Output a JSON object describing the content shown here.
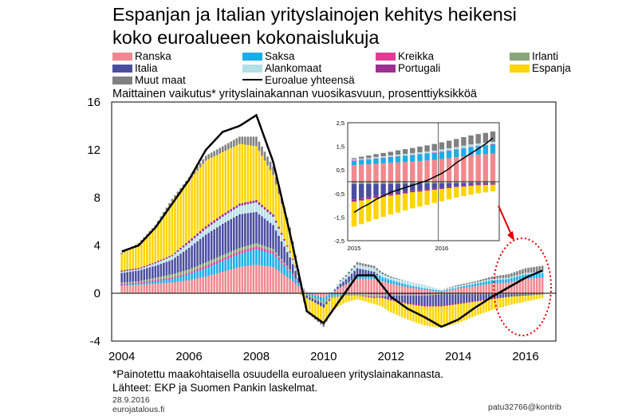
{
  "title_line1": "Espanjan ja Italian yrityslainojen kehitys heikensi",
  "title_line2": "koko euroalueen kokonaislukuja",
  "subtitle": "Maittainen vaikutus* yrityslainakannan vuosikasvuun, prosenttiyksikköä",
  "footnote": "*Painotettu maakohtaisella osuudella euroalueen yrityslainakannasta.",
  "sources": "Lähteet: EKP ja Suomen Pankin laskelmat.",
  "date": "28.9.2016",
  "site": "eurojatalous.fi",
  "signature": "patu32766@kontrib",
  "legend": [
    {
      "label": "Ranska",
      "color": "#f0898f"
    },
    {
      "label": "Saksa",
      "color": "#1aaee8"
    },
    {
      "label": "Kreikka",
      "color": "#e33b95"
    },
    {
      "label": "Irlanti",
      "color": "#8aa57a"
    },
    {
      "label": "Italia",
      "color": "#4b4ea0"
    },
    {
      "label": "Alankomaat",
      "color": "#b4dfe6"
    },
    {
      "label": "Portugali",
      "color": "#9c2f91"
    },
    {
      "label": "Espanja",
      "color": "#ffd400"
    },
    {
      "label": "Muut maat",
      "color": "#808080"
    },
    {
      "label": "Euroalue yhteensä",
      "color": "#000000"
    }
  ],
  "chart_data": {
    "type": "area",
    "stacked": true,
    "title": "Maittainen vaikutus* yrityslainakannan vuosikasvuun, prosenttiyksikköä",
    "x_tick_labels": [
      "2004",
      "2006",
      "2008",
      "2010",
      "2012",
      "2014",
      "2016"
    ],
    "y_tick_labels": [
      "16",
      "12",
      "8",
      "4",
      "0",
      "-4"
    ],
    "ylim": [
      -4,
      16
    ],
    "xlim": [
      2003.7,
      2016.9
    ],
    "years": [
      2004.0,
      2004.5,
      2005.0,
      2005.5,
      2006.0,
      2006.5,
      2007.0,
      2007.5,
      2008.0,
      2008.5,
      2009.0,
      2009.5,
      2010.0,
      2010.5,
      2011.0,
      2011.5,
      2012.0,
      2012.5,
      2013.0,
      2013.5,
      2014.0,
      2014.5,
      2015.0,
      2015.5,
      2016.0,
      2016.5
    ],
    "series": [
      {
        "name": "Ranska",
        "color": "#f0898f",
        "values": [
          0.6,
          0.7,
          0.8,
          0.9,
          1.1,
          1.4,
          1.8,
          2.2,
          2.4,
          2.2,
          1.2,
          0.0,
          -0.4,
          0.5,
          1.2,
          1.2,
          0.8,
          0.5,
          0.3,
          0.1,
          0.4,
          0.6,
          0.8,
          0.9,
          1.2,
          1.3
        ]
      },
      {
        "name": "Saksa",
        "color": "#1aaee8",
        "values": [
          0.1,
          0.1,
          0.2,
          0.3,
          0.5,
          0.7,
          0.9,
          1.1,
          1.3,
          1.1,
          0.6,
          -0.1,
          -0.3,
          -0.1,
          0.3,
          0.4,
          0.3,
          0.2,
          0.1,
          0.1,
          0.1,
          0.2,
          0.3,
          0.3,
          0.4,
          0.4
        ]
      },
      {
        "name": "Kreikka",
        "color": "#e33b95",
        "values": [
          0.1,
          0.1,
          0.1,
          0.1,
          0.1,
          0.2,
          0.2,
          0.2,
          0.2,
          0.2,
          0.1,
          0.0,
          0.0,
          0.0,
          0.0,
          -0.1,
          -0.1,
          -0.1,
          -0.1,
          0.0,
          0.0,
          0.0,
          0.0,
          0.0,
          0.0,
          0.0
        ]
      },
      {
        "name": "Irlanti",
        "color": "#8aa57a",
        "values": [
          0.1,
          0.1,
          0.2,
          0.3,
          0.3,
          0.3,
          0.3,
          0.3,
          0.3,
          0.2,
          0.1,
          -0.1,
          -0.2,
          -0.2,
          -0.2,
          -0.2,
          -0.1,
          -0.1,
          -0.1,
          -0.1,
          -0.1,
          -0.1,
          -0.1,
          -0.1,
          -0.1,
          -0.1
        ]
      },
      {
        "name": "Italia",
        "color": "#4b4ea0",
        "values": [
          0.8,
          0.9,
          1.0,
          1.2,
          1.8,
          2.3,
          2.6,
          2.8,
          2.6,
          2.0,
          1.0,
          -0.2,
          -0.3,
          0.3,
          0.6,
          0.2,
          -0.3,
          -0.6,
          -0.8,
          -0.9,
          -0.7,
          -0.5,
          -0.3,
          -0.2,
          -0.1,
          0.0
        ]
      },
      {
        "name": "Alankomaat",
        "color": "#b4dfe6",
        "values": [
          0.1,
          0.1,
          0.2,
          0.3,
          0.4,
          0.5,
          0.6,
          0.7,
          0.8,
          0.7,
          0.4,
          0.1,
          0.0,
          0.2,
          0.3,
          0.3,
          0.2,
          0.3,
          0.3,
          0.1,
          0.1,
          0.1,
          0.1,
          0.1,
          0.1,
          0.1
        ]
      },
      {
        "name": "Portugali",
        "color": "#9c2f91",
        "values": [
          0.1,
          0.1,
          0.1,
          0.1,
          0.2,
          0.2,
          0.2,
          0.2,
          0.2,
          0.2,
          0.1,
          0.0,
          0.0,
          0.0,
          0.0,
          -0.1,
          -0.1,
          -0.1,
          -0.1,
          -0.1,
          -0.1,
          -0.1,
          -0.1,
          0.0,
          0.0,
          0.0
        ]
      },
      {
        "name": "Espanja",
        "color": "#ffd400",
        "values": [
          1.4,
          2.0,
          2.9,
          4.5,
          5.0,
          5.5,
          5.2,
          5.0,
          4.5,
          3.3,
          1.6,
          -1.0,
          -1.3,
          -0.7,
          -0.3,
          -0.5,
          -1.0,
          -1.3,
          -1.6,
          -1.8,
          -1.6,
          -1.2,
          -0.9,
          -0.7,
          -0.5,
          -0.3
        ]
      },
      {
        "name": "Muut maat",
        "color": "#808080",
        "values": [
          0.1,
          0.1,
          0.2,
          0.2,
          0.3,
          0.4,
          0.5,
          0.6,
          0.8,
          0.7,
          0.4,
          -0.2,
          -0.3,
          0.1,
          0.2,
          0.2,
          0.1,
          0.0,
          0.0,
          0.0,
          0.1,
          0.1,
          0.2,
          0.3,
          0.4,
          0.5
        ]
      }
    ],
    "total": {
      "name": "Euroalue yhteensä",
      "color": "#000000",
      "values": [
        3.5,
        4.0,
        5.5,
        7.5,
        9.5,
        12.0,
        13.5,
        14.0,
        14.9,
        11.0,
        5.0,
        -1.5,
        -2.5,
        -0.5,
        1.5,
        1.5,
        -0.3,
        -1.3,
        -2.0,
        -2.8,
        -2.2,
        -1.2,
        -0.3,
        0.5,
        1.3,
        1.9
      ]
    },
    "inset": {
      "x_tick_labels": [
        "2015",
        "2016"
      ],
      "y_tick_labels": [
        "2,5",
        "1,5",
        "0,5",
        "-0,5",
        "-1,5",
        "-2,5"
      ],
      "ylim": [
        -2.5,
        2.5
      ],
      "months": [
        0,
        1,
        2,
        3,
        4,
        5,
        6,
        7,
        8,
        9,
        10,
        11,
        12,
        13,
        14,
        15,
        16,
        17,
        18,
        19
      ],
      "series": [
        {
          "name": "Ranska",
          "values": [
            0.7,
            0.72,
            0.74,
            0.76,
            0.78,
            0.8,
            0.82,
            0.84,
            0.86,
            0.88,
            0.9,
            0.93,
            0.96,
            1.0,
            1.04,
            1.08,
            1.12,
            1.15,
            1.17,
            1.2
          ]
        },
        {
          "name": "Saksa",
          "values": [
            0.18,
            0.19,
            0.2,
            0.21,
            0.22,
            0.23,
            0.24,
            0.25,
            0.26,
            0.27,
            0.28,
            0.29,
            0.3,
            0.31,
            0.32,
            0.33,
            0.34,
            0.35,
            0.36,
            0.37
          ]
        },
        {
          "name": "Kreikka",
          "values": [
            0.02,
            0.02,
            0.02,
            0.02,
            0.02,
            0.02,
            0.02,
            0.02,
            0.02,
            0.02,
            0.02,
            0.02,
            0.02,
            0.02,
            0.02,
            0.02,
            0.02,
            0.02,
            0.02,
            0.02
          ]
        },
        {
          "name": "Irlanti",
          "values": [
            -0.1,
            -0.1,
            -0.1,
            -0.1,
            -0.09,
            -0.09,
            -0.09,
            -0.08,
            -0.08,
            -0.08,
            -0.07,
            -0.07,
            -0.07,
            -0.06,
            -0.06,
            -0.06,
            -0.05,
            -0.05,
            -0.05,
            -0.05
          ]
        },
        {
          "name": "Italia",
          "values": [
            -0.65,
            -0.6,
            -0.55,
            -0.5,
            -0.46,
            -0.42,
            -0.38,
            -0.34,
            -0.3,
            -0.27,
            -0.24,
            -0.21,
            -0.18,
            -0.15,
            -0.12,
            -0.1,
            -0.08,
            -0.06,
            -0.05,
            -0.04
          ]
        },
        {
          "name": "Alankomaat",
          "values": [
            0.05,
            0.05,
            0.05,
            0.06,
            0.06,
            0.06,
            0.07,
            0.07,
            0.07,
            0.08,
            0.08,
            0.08,
            0.09,
            0.09,
            0.09,
            0.1,
            0.1,
            0.1,
            0.1,
            0.1
          ]
        },
        {
          "name": "Portugali",
          "values": [
            -0.1,
            -0.1,
            -0.09,
            -0.09,
            -0.09,
            -0.08,
            -0.08,
            -0.08,
            -0.07,
            -0.07,
            -0.07,
            -0.06,
            -0.06,
            -0.06,
            -0.05,
            -0.05,
            -0.05,
            -0.04,
            -0.04,
            -0.04
          ]
        },
        {
          "name": "Espanja",
          "values": [
            -1.05,
            -1.0,
            -0.95,
            -0.9,
            -0.85,
            -0.8,
            -0.76,
            -0.72,
            -0.68,
            -0.64,
            -0.6,
            -0.56,
            -0.52,
            -0.48,
            -0.44,
            -0.4,
            -0.37,
            -0.34,
            -0.31,
            -0.28
          ]
        },
        {
          "name": "Muut maat",
          "values": [
            0.05,
            0.08,
            0.1,
            0.12,
            0.14,
            0.16,
            0.18,
            0.2,
            0.22,
            0.24,
            0.26,
            0.28,
            0.3,
            0.32,
            0.34,
            0.36,
            0.38,
            0.4,
            0.42,
            0.44
          ]
        }
      ],
      "total": [
        -1.3,
        -1.1,
        -0.95,
        -0.75,
        -0.6,
        -0.45,
        -0.35,
        -0.25,
        -0.15,
        -0.05,
        0.05,
        0.2,
        0.35,
        0.55,
        0.8,
        1.0,
        1.2,
        1.4,
        1.6,
        1.85
      ]
    }
  }
}
